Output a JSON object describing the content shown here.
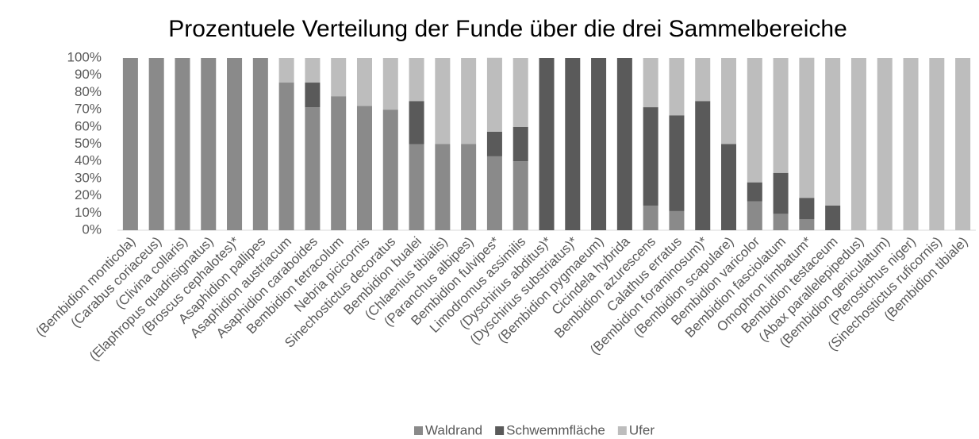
{
  "chart_data": {
    "type": "stacked_bar",
    "title": "Prozentuele Verteilung der Funde über die drei Sammelbereiche",
    "categories": [
      "(Bembidion monticola)",
      "(Carabus coriaceus)",
      "(Clivina collaris)",
      "(Elaphropus quadrisignatus)",
      "(Broscus cephalotes)*",
      "Asaphidion pallipes",
      "Asaphidion austriacum",
      "Asaphidion caraboides",
      "Bembidion tetracolum",
      "Nebria picicornis",
      "Sinechostictus decoratus",
      "Bembidion bualei",
      "(Chlaenius tibialis)",
      "(Paranchus albipes)",
      "Bembidion fulvipes*",
      "Limodromus assimilis",
      "(Dyschirius abditus)*",
      "(Dyschirius substriatus)*",
      "(Bembidion pygmaeum)",
      "Cicindela hybrida",
      "Bembidion azurescens",
      "Calathus erratus",
      "(Bembidion foraminosum)*",
      "(Bembidion scapulare)",
      "Bembidion varicolor",
      "Bembidion fasciolatum",
      "Omophron limbatum*",
      "Bembidion testaceum",
      "(Abax parallelepipedus)",
      "(Bembidion geniculatum)",
      "(Pterostichus niger)",
      "(Sinechostictus ruficornis)",
      "(Bembidion tibiale)"
    ],
    "series": [
      {
        "name": "Waldrand",
        "color": "#8a8a8a",
        "values": [
          100,
          100,
          100,
          100,
          100,
          100,
          85.7,
          71.4,
          77.8,
          72.2,
          70,
          50,
          50,
          50,
          42.9,
          40,
          0,
          0,
          0,
          0,
          14.3,
          11.1,
          0,
          0,
          16.7,
          9.5,
          6.3,
          0,
          0,
          0,
          0,
          0,
          0
        ]
      },
      {
        "name": "Schwemmfläche",
        "color": "#5a5a5a",
        "values": [
          0,
          0,
          0,
          0,
          0,
          0,
          0,
          14.3,
          0,
          0,
          0,
          25,
          0,
          0,
          14.3,
          20,
          100,
          100,
          100,
          100,
          57.1,
          55.6,
          75,
          50,
          11.1,
          23.8,
          12.5,
          14.3,
          0,
          0,
          0,
          0,
          0
        ]
      },
      {
        "name": "Ufer",
        "color": "#bdbdbd",
        "values": [
          0,
          0,
          0,
          0,
          0,
          0,
          14.3,
          14.3,
          22.2,
          27.8,
          30,
          25,
          50,
          50,
          42.9,
          40,
          0,
          0,
          0,
          0,
          28.6,
          33.3,
          25,
          50,
          72.2,
          66.7,
          81.3,
          85.7,
          100,
          100,
          100,
          100,
          100
        ]
      }
    ],
    "ylim": [
      0,
      100
    ],
    "yticks": [
      {
        "value": 0,
        "label": "0%"
      },
      {
        "value": 10,
        "label": "10%"
      },
      {
        "value": 20,
        "label": "20%"
      },
      {
        "value": 30,
        "label": "30%"
      },
      {
        "value": 40,
        "label": "40%"
      },
      {
        "value": 50,
        "label": "50%"
      },
      {
        "value": 60,
        "label": "60%"
      },
      {
        "value": 70,
        "label": "70%"
      },
      {
        "value": 80,
        "label": "80%"
      },
      {
        "value": 90,
        "label": "90%"
      },
      {
        "value": 100,
        "label": "100%"
      }
    ],
    "legend": "bottom"
  }
}
